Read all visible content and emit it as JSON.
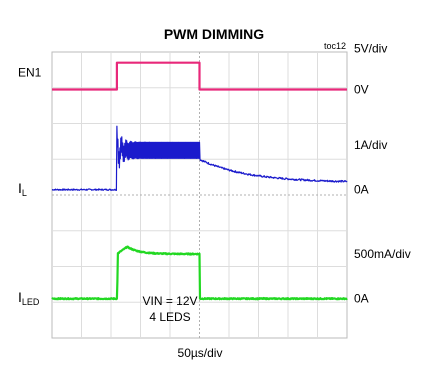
{
  "chart_data": {
    "type": "line",
    "title": "PWM DIMMING",
    "figure_id": "toc12",
    "time_scale": "50µs/div",
    "annotation": {
      "line1": "VIN = 12V",
      "line2": "4 LEDS"
    },
    "grid": true,
    "divisions": {
      "x": 10,
      "y": 8
    },
    "x_range_div": [
      0,
      10
    ],
    "traces": [
      {
        "label": "EN1",
        "sub": "",
        "color": "#e8287a",
        "scale": "5V/div",
        "zero_label": "0V",
        "zero_div": 6.95,
        "style": "square",
        "low": 0,
        "high": 0.75,
        "t_rise_div": 2.2,
        "t_fall_div": 5.0
      },
      {
        "label": "I",
        "sub": "L",
        "color": "#1a1acc",
        "scale": "1A/div",
        "zero_label": "0A",
        "zero_div": 4.15,
        "style": "inductor",
        "low": 0,
        "high": 1.1,
        "ripple": 0.25,
        "overshoot": 0.45,
        "t_rise_div": 2.2,
        "t_fall_div": 5.0,
        "tail_start": 0.85,
        "tail_end": 0.2
      },
      {
        "label": "I",
        "sub": "LED",
        "color": "#22d822",
        "scale": "500mA/div",
        "zero_label": "0A",
        "zero_div": 1.1,
        "style": "led",
        "low": 0,
        "high": 1.25,
        "peak": 1.45,
        "t_rise_div": 2.2,
        "t_fall_div": 5.0
      }
    ]
  }
}
